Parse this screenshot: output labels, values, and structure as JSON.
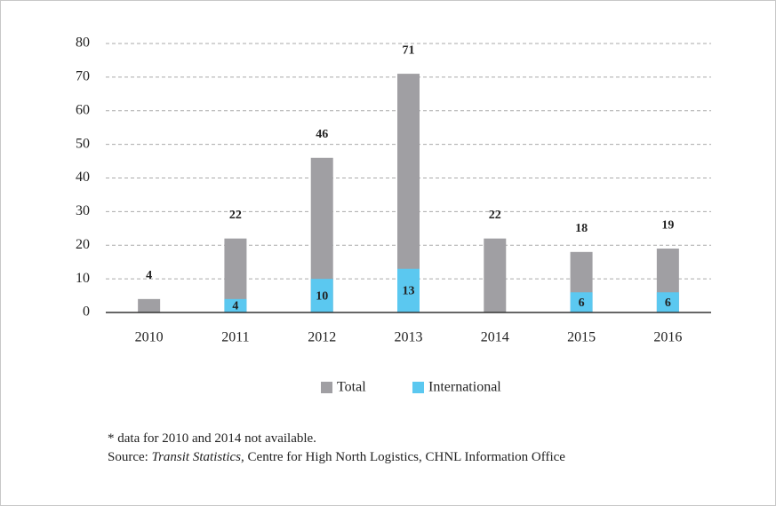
{
  "chart_data": {
    "type": "bar",
    "barmode": "overlay",
    "categories": [
      "2010",
      "2011",
      "2012",
      "2013",
      "2014",
      "2015",
      "2016"
    ],
    "series": [
      {
        "name": "Total",
        "color": "#a09fa3",
        "values": [
          4,
          22,
          46,
          71,
          22,
          18,
          19
        ]
      },
      {
        "name": "International",
        "color": "#5bc8f0",
        "values": [
          null,
          4,
          10,
          13,
          null,
          6,
          6
        ]
      }
    ],
    "ylim": [
      0,
      80
    ],
    "yticks": [
      0,
      10,
      20,
      30,
      40,
      50,
      60,
      70,
      80
    ],
    "grid": true,
    "legend": "bottom"
  },
  "notes": {
    "footnote": "* data for 2010 and 2014 not available.",
    "source_prefix": "Source: ",
    "source_title": "Transit Statistics",
    "source_rest": ", Centre for High North Logistics, CHNL Information Office"
  }
}
